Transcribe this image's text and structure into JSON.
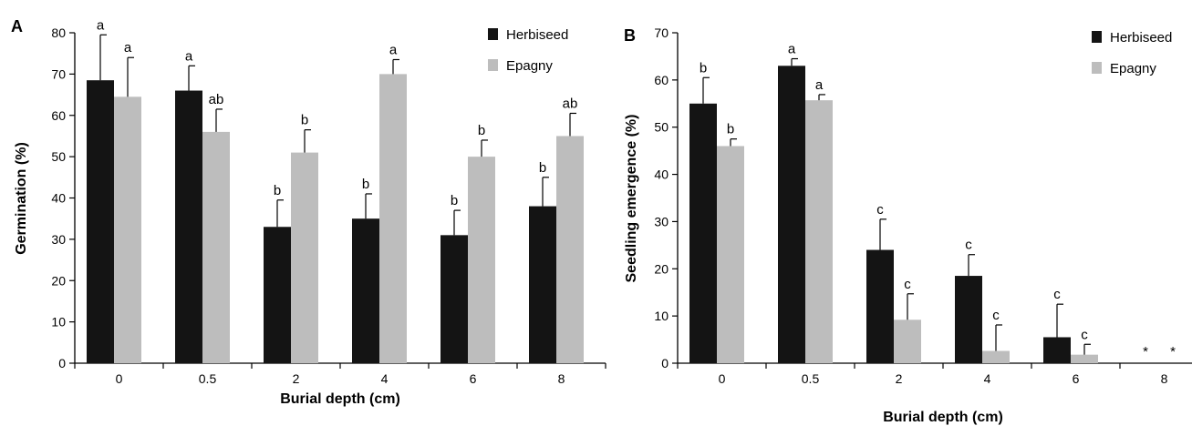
{
  "colors": {
    "Herbiseed": "#141414",
    "Epagny": "#bdbdbd"
  },
  "chart_data": [
    {
      "type": "bar",
      "panel_label": "A",
      "xlabel": "Burial depth (cm)",
      "ylabel": "Germination (%)",
      "categories": [
        "0",
        "0.5",
        "2",
        "4",
        "6",
        "8"
      ],
      "ylim": [
        0,
        80
      ],
      "yticks": [
        0,
        10,
        20,
        30,
        40,
        50,
        60,
        70,
        80
      ],
      "legend_position": "top-right",
      "series": [
        {
          "name": "Herbiseed",
          "values": [
            68.5,
            66,
            33,
            35,
            31,
            38
          ],
          "errors": [
            11,
            6,
            6.5,
            6,
            6,
            7
          ],
          "letters": [
            "a",
            "a",
            "b",
            "b",
            "b",
            "b"
          ]
        },
        {
          "name": "Epagny",
          "values": [
            64.5,
            56,
            51,
            70,
            50,
            55
          ],
          "errors": [
            9.5,
            5.5,
            5.5,
            3.5,
            4,
            5.5
          ],
          "letters": [
            "a",
            "ab",
            "b",
            "a",
            "b",
            "ab"
          ]
        }
      ],
      "markers": []
    },
    {
      "type": "bar",
      "panel_label": "B",
      "xlabel": "Burial depth (cm)",
      "ylabel": "Seedling emergence (%)",
      "categories": [
        "0",
        "0.5",
        "2",
        "4",
        "6",
        "8"
      ],
      "ylim": [
        0,
        70
      ],
      "yticks": [
        0,
        10,
        20,
        30,
        40,
        50,
        60,
        70
      ],
      "legend_position": "top-right",
      "series": [
        {
          "name": "Herbiseed",
          "values": [
            55,
            63,
            24,
            18.5,
            5.5,
            0
          ],
          "errors": [
            5.5,
            1.5,
            6.5,
            4.5,
            7,
            0
          ],
          "letters": [
            "b",
            "a",
            "c",
            "c",
            "c",
            ""
          ]
        },
        {
          "name": "Epagny",
          "values": [
            46,
            55.7,
            9.2,
            2.6,
            1.8,
            0
          ],
          "errors": [
            1.5,
            1.2,
            5.5,
            5.5,
            2.2,
            0
          ],
          "letters": [
            "b",
            "a",
            "c",
            "c",
            "c",
            ""
          ]
        }
      ],
      "markers": [
        {
          "category": "8",
          "series": "Herbiseed",
          "symbol": "*"
        },
        {
          "category": "8",
          "series": "Epagny",
          "symbol": "*"
        }
      ]
    }
  ]
}
